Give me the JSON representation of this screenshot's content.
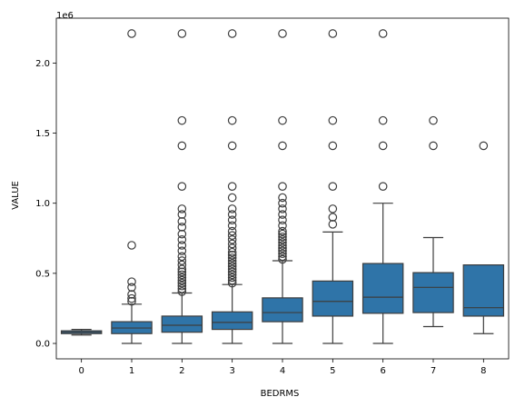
{
  "chart_data": {
    "type": "box",
    "title": "",
    "xlabel": "BEDRMS",
    "ylabel": "VALUE",
    "y_offset_label": "1e6",
    "categories": [
      "0",
      "1",
      "2",
      "3",
      "4",
      "5",
      "6",
      "7",
      "8"
    ],
    "ylim": [
      -0.11,
      2.32
    ],
    "yticks": [
      0.0,
      0.5,
      1.0,
      1.5,
      2.0
    ],
    "ytick_labels": [
      "0.0",
      "0.5",
      "1.0",
      "1.5",
      "2.0"
    ],
    "box_color": "#2f74a8",
    "edge_color": "#3d3d3d",
    "boxes": [
      {
        "category": "0",
        "whislo": 0.06,
        "q1": 0.07,
        "median": 0.08,
        "q3": 0.09,
        "whishi": 0.1,
        "fliers": []
      },
      {
        "category": "1",
        "whislo": 0.0,
        "q1": 0.07,
        "median": 0.11,
        "q3": 0.155,
        "whishi": 0.28,
        "fliers": [
          0.3,
          0.32,
          0.35,
          0.4,
          0.44,
          0.7,
          2.21
        ]
      },
      {
        "category": "2",
        "whislo": 0.0,
        "q1": 0.08,
        "median": 0.13,
        "q3": 0.195,
        "whishi": 0.36,
        "fliers": [
          0.37,
          0.39,
          0.41,
          0.43,
          0.45,
          0.47,
          0.49,
          0.51,
          0.53,
          0.56,
          0.59,
          0.62,
          0.66,
          0.7,
          0.74,
          0.78,
          0.83,
          0.87,
          0.92,
          0.96,
          1.12,
          1.41,
          1.59,
          2.21
        ]
      },
      {
        "category": "3",
        "whislo": 0.0,
        "q1": 0.1,
        "median": 0.15,
        "q3": 0.225,
        "whishi": 0.42,
        "fliers": [
          0.43,
          0.45,
          0.47,
          0.49,
          0.51,
          0.53,
          0.55,
          0.57,
          0.59,
          0.61,
          0.63,
          0.65,
          0.68,
          0.71,
          0.74,
          0.77,
          0.8,
          0.84,
          0.88,
          0.92,
          0.96,
          1.04,
          1.12,
          1.41,
          1.59,
          2.21
        ]
      },
      {
        "category": "4",
        "whislo": 0.0,
        "q1": 0.155,
        "median": 0.22,
        "q3": 0.325,
        "whishi": 0.59,
        "fliers": [
          0.6,
          0.62,
          0.64,
          0.66,
          0.68,
          0.7,
          0.72,
          0.74,
          0.76,
          0.78,
          0.8,
          0.84,
          0.88,
          0.92,
          0.96,
          1.0,
          1.04,
          1.12,
          1.41,
          1.59,
          2.21
        ]
      },
      {
        "category": "5",
        "whislo": 0.0,
        "q1": 0.195,
        "median": 0.3,
        "q3": 0.445,
        "whishi": 0.795,
        "fliers": [
          0.85,
          0.9,
          0.96,
          1.12,
          1.41,
          1.59,
          2.21
        ]
      },
      {
        "category": "6",
        "whislo": 0.0,
        "q1": 0.215,
        "median": 0.33,
        "q3": 0.57,
        "whishi": 1.0,
        "fliers": [
          1.12,
          1.41,
          1.59,
          2.21
        ]
      },
      {
        "category": "7",
        "whislo": 0.12,
        "q1": 0.22,
        "median": 0.4,
        "q3": 0.505,
        "whishi": 0.755,
        "fliers": [
          1.41,
          1.59
        ]
      },
      {
        "category": "8",
        "whislo": 0.07,
        "q1": 0.195,
        "median": 0.255,
        "q3": 0.56,
        "whishi": 0.56,
        "fliers": [
          1.41
        ]
      }
    ]
  }
}
